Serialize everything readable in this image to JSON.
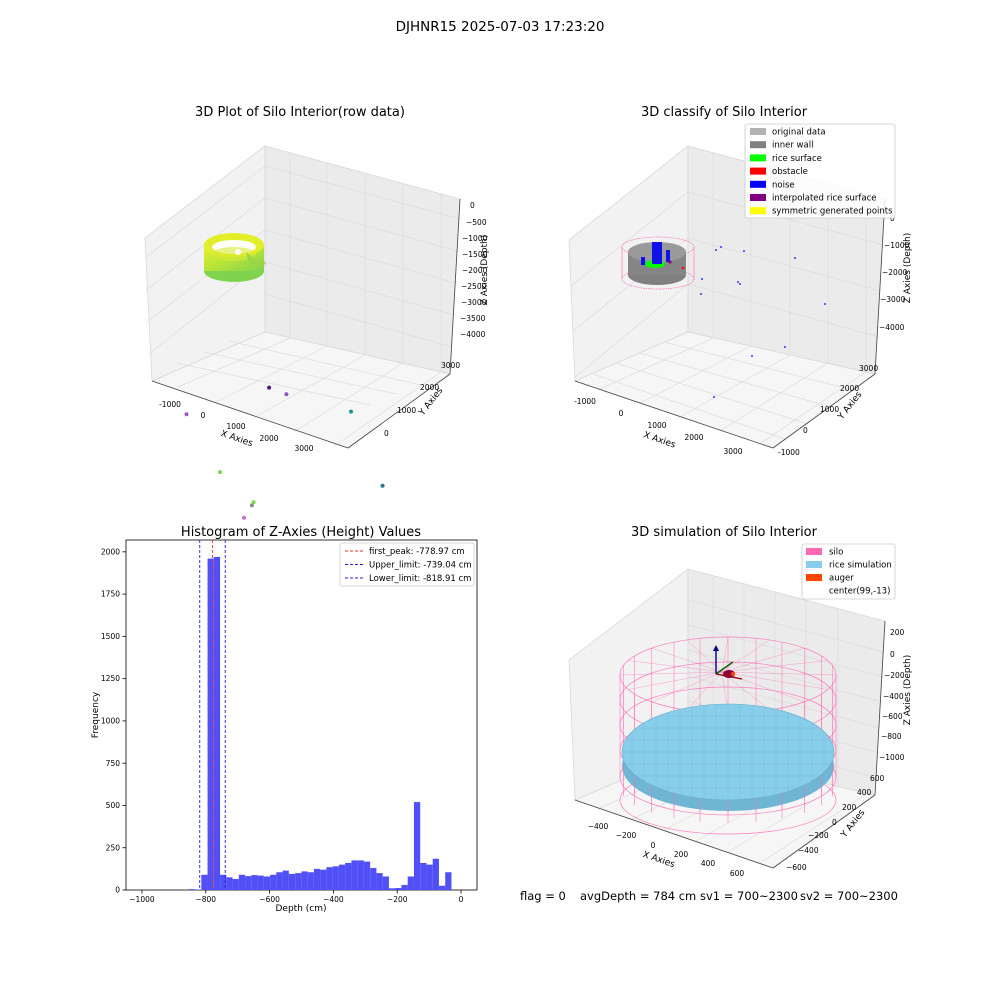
{
  "figure": {
    "suptitle": "DJHNR15 2025-07-03 17:23:20",
    "footer": {
      "flag": "flag = 0",
      "avg_depth": "avgDepth = 784 cm",
      "sv1": "sv1 = 700~2300",
      "sv2": "sv2 = 700~2300"
    }
  },
  "colors": {
    "hist_bar": "#5050f6",
    "peak_line": "#e8302a",
    "limit_line": "#1f1fdc",
    "silo": "#ff69b4",
    "rice": "#87ceeb",
    "auger": "#ff4500",
    "gray": "#888888"
  },
  "chart_data": [
    {
      "type": "scatter",
      "subtype": "3d",
      "title": "3D Plot of Silo Interior(row data)",
      "xlabel": "X Axies",
      "ylabel": "Y Axies",
      "zlabel": "Z Axies (Depth)",
      "x_ticks": [
        "-1000",
        "0",
        "1000",
        "2000",
        "3000"
      ],
      "y_ticks": [
        "0",
        "1000",
        "2000",
        "3000"
      ],
      "z_ticks": [
        "0",
        "−500",
        "−1000",
        "−1500",
        "−2000",
        "−2500",
        "−3000",
        "−3500",
        "−4000"
      ],
      "outlier_points": [
        {
          "x": 1050,
          "y": 80,
          "z": -1050
        },
        {
          "x": 1080,
          "y": 120,
          "z": -950
        },
        {
          "x": 950,
          "y": 260,
          "z": -2080
        },
        {
          "x": 1700,
          "y": 1050,
          "z": -1050
        },
        {
          "x": 1200,
          "y": 250,
          "z": -2350
        },
        {
          "x": 1230,
          "y": 270,
          "z": -2400
        },
        {
          "x": 350,
          "y": 150,
          "z": -2800
        },
        {
          "x": 2850,
          "y": 2300,
          "z": -2050
        },
        {
          "x": -500,
          "y": 0,
          "z": -3700
        },
        {
          "x": 2400,
          "y": 1850,
          "z": -3450
        },
        {
          "x": 1400,
          "y": 1000,
          "z": -3950
        },
        {
          "x": 1100,
          "y": 800,
          "z": -4100
        }
      ]
    },
    {
      "type": "scatter",
      "subtype": "3d",
      "title": "3D classify of Silo Interior",
      "xlabel": "X Axies",
      "ylabel": "Y Axies",
      "zlabel": "Z Axies (Depth)",
      "x_ticks": [
        "-1000",
        "0",
        "1000",
        "2000",
        "3000"
      ],
      "y_ticks": [
        "-1000",
        "0",
        "1000",
        "2000",
        "3000"
      ],
      "z_ticks": [
        "0",
        "−1000",
        "−2000",
        "−3000",
        "−4000"
      ],
      "legend_position": "top-right",
      "legend": [
        {
          "label": "original data",
          "color": "#b2b2b2"
        },
        {
          "label": "inner wall",
          "color": "#808080"
        },
        {
          "label": "rice surface",
          "color": "#00ff00"
        },
        {
          "label": "obstacle",
          "color": "#ff0000"
        },
        {
          "label": "noise",
          "color": "#0000ff"
        },
        {
          "label": "interpolated rice surface",
          "color": "#800080"
        },
        {
          "label": "symmetric generated points",
          "color": "#ffff00"
        }
      ]
    },
    {
      "type": "bar",
      "subtype": "histogram",
      "title": "Histogram of Z-Axies (Height) Values",
      "xlabel": "Depth (cm)",
      "ylabel": "Frequency",
      "xlim": [
        -1050,
        50
      ],
      "ylim": [
        0,
        2070
      ],
      "x_ticks": [
        -1000,
        -800,
        -600,
        -400,
        -200,
        0
      ],
      "y_ticks": [
        0,
        250,
        500,
        750,
        1000,
        1250,
        1500,
        1750,
        2000
      ],
      "bin_width": 19.6,
      "bins_start": [
        -1010,
        -990.4,
        -970.8,
        -951.2,
        -931.6,
        -912,
        -892.4,
        -872.8,
        -853.2,
        -833.6,
        -814,
        -794.4,
        -774.8,
        -755.2,
        -735.6,
        -716,
        -696.4,
        -676.8,
        -657.2,
        -637.6,
        -618,
        -598.4,
        -578.8,
        -559.2,
        -539.6,
        -520,
        -500.4,
        -480.8,
        -461.2,
        -441.6,
        -422,
        -402.4,
        -382.8,
        -363.2,
        -343.6,
        -324,
        -304.4,
        -284.8,
        -265.2,
        -245.6,
        -226,
        -206.4,
        -186.8,
        -167.2,
        -147.6,
        -128,
        -108.4,
        -88.8,
        -69.2,
        -49.6,
        -30,
        -10.4
      ],
      "counts": [
        1,
        0,
        0,
        0,
        0,
        0,
        0,
        0,
        5,
        3,
        90,
        1960,
        1970,
        90,
        75,
        65,
        90,
        82,
        88,
        85,
        80,
        90,
        105,
        115,
        95,
        100,
        110,
        105,
        125,
        120,
        135,
        140,
        150,
        160,
        175,
        175,
        168,
        130,
        100,
        80,
        10,
        12,
        30,
        80,
        520,
        160,
        150,
        185,
        25,
        105,
        0,
        0
      ],
      "lines": [
        {
          "label": "first_peak: -778.97 cm",
          "value": -778.97,
          "style": "dashed",
          "color": "#e8302a"
        },
        {
          "label": "Upper_limit: -739.04 cm",
          "value": -739.04,
          "style": "dashed",
          "color": "#1f1fdc"
        },
        {
          "label": "Lower_limit: -818.91 cm",
          "value": -818.91,
          "style": "dashed",
          "color": "#1f1fdc"
        }
      ],
      "legend_position": "top-right"
    },
    {
      "type": "scatter",
      "subtype": "3d-surface",
      "title": "3D simulation of Silo Interior",
      "xlabel": "X Axies",
      "ylabel": "Y Axies",
      "zlabel": "Z Axies (Depth)",
      "x_ticks": [
        "−400",
        "−200",
        "0",
        "200",
        "400",
        "600"
      ],
      "y_ticks": [
        "−600",
        "−400",
        "−200",
        "0",
        "200",
        "400",
        "600"
      ],
      "z_ticks": [
        "200",
        "0",
        "−200",
        "−400",
        "−600",
        "−800",
        "−1000"
      ],
      "legend_position": "top-right",
      "legend": [
        {
          "label": "silo",
          "color": "#ff69b4"
        },
        {
          "label": "rice simulation",
          "color": "#87ceeb"
        },
        {
          "label": "auger",
          "color": "#ff4500"
        },
        {
          "label": "center(99,-13)",
          "color": "none"
        }
      ]
    }
  ]
}
